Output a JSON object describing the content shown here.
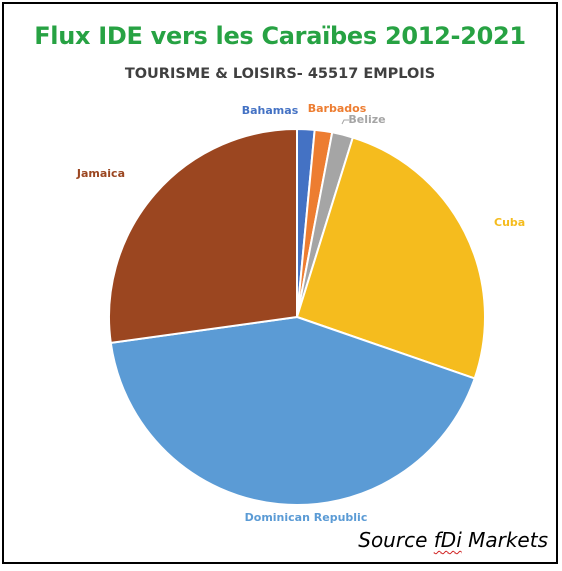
{
  "chart_data": {
    "type": "pie",
    "title": "Flux IDE vers les Caraïbes 2012-2021",
    "subtitle": "TOURISME & LOISIRS- 45517 EMPLOIS",
    "source_prefix": "Source",
    "source_brand": "fDi",
    "source_suffix": "Markets",
    "colors": {
      "title": "#27a243",
      "subtitle": "#404040"
    },
    "slices": [
      {
        "label": "Bahamas",
        "value": 1.5,
        "color": "#4472c4"
      },
      {
        "label": "Barbados",
        "value": 1.5,
        "color": "#ed7d31"
      },
      {
        "label": "Belize",
        "value": 1.8,
        "color": "#a5a5a5"
      },
      {
        "label": "Cuba",
        "value": 25.5,
        "color": "#f5bc1e"
      },
      {
        "label": "Dominican Republic",
        "value": 42.5,
        "color": "#5b9bd5"
      },
      {
        "label": "Jamaica",
        "value": 27.2,
        "color": "#9b4620"
      }
    ]
  }
}
